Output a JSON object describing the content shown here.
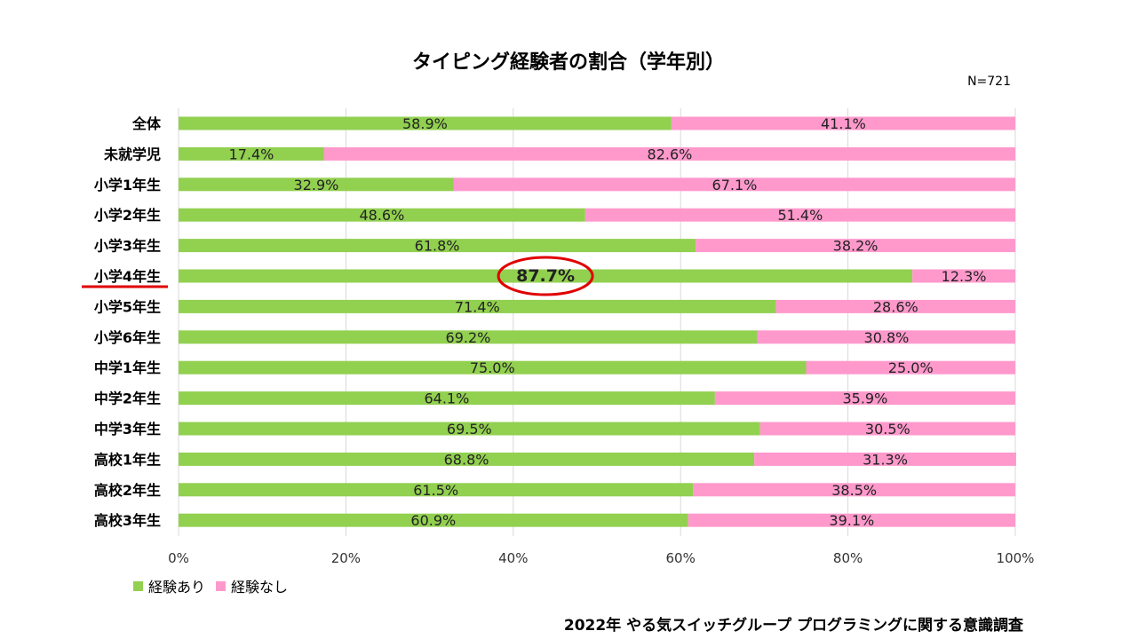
{
  "chart_data": {
    "type": "bar",
    "orientation": "horizontal",
    "stacked": true,
    "title": "タイピング経験者の割合（学年別）",
    "sample_size": "N=721",
    "categories": [
      "全体",
      "未就学児",
      "小学1年生",
      "小学2年生",
      "小学3年生",
      "小学4年生",
      "小学5年生",
      "小学6年生",
      "中学1年生",
      "中学2年生",
      "中学3年生",
      "高校1年生",
      "高校2年生",
      "高校3年生"
    ],
    "series": [
      {
        "name": "経験あり",
        "color": "#92d050",
        "values": [
          58.9,
          17.4,
          32.9,
          48.6,
          61.8,
          87.7,
          71.4,
          69.2,
          75.0,
          64.1,
          69.5,
          68.8,
          61.5,
          60.9
        ]
      },
      {
        "name": "経験なし",
        "color": "#ff99cc",
        "values": [
          41.1,
          82.6,
          67.1,
          51.4,
          38.2,
          12.3,
          28.6,
          30.8,
          25.0,
          35.9,
          30.5,
          31.3,
          38.5,
          39.1
        ]
      }
    ],
    "xlim": [
      0,
      100
    ],
    "x_ticks": [
      "0%",
      "20%",
      "40%",
      "60%",
      "80%",
      "100%"
    ],
    "grid": true,
    "legend_position": "bottom-left",
    "highlight": {
      "category": "小学4年生",
      "series": "経験あり",
      "value": 87.7
    },
    "source": "2022年 やる気スイッチグループ プログラミングに関する意識調査"
  }
}
